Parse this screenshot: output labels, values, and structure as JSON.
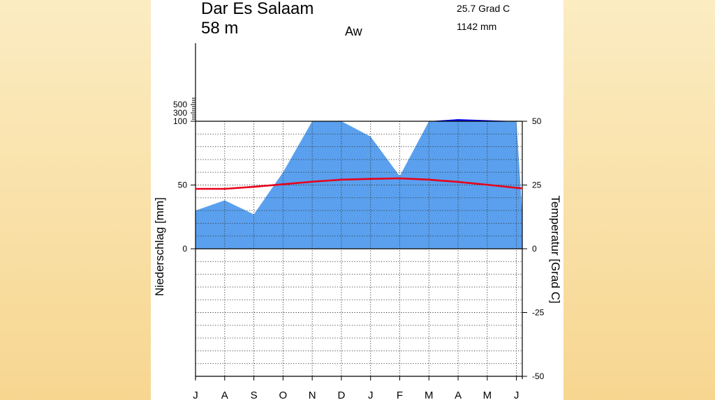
{
  "chart_data": {
    "type": "area",
    "title": "Dar Es Salaam",
    "elevation": "58 m",
    "climate_class": "Aw",
    "annual_temperature": "25.7 Grad C",
    "annual_precipitation": "1142 mm",
    "ylabel_left": "Niederschlag [mm]",
    "ylabel_right": "Temperatur [Grad C]",
    "months": [
      "J",
      "A",
      "S",
      "O",
      "N",
      "D",
      "J",
      "F",
      "M",
      "A",
      "M",
      "J"
    ],
    "precip_ticks": [
      "0",
      "50",
      "100",
      "300",
      "500"
    ],
    "precip_tick_values": [
      0,
      50,
      100,
      300,
      500
    ],
    "temp_ticks": [
      "50",
      "25",
      "0",
      "-25",
      "-50"
    ],
    "temp_tick_values": [
      50,
      25,
      0,
      -25,
      -50
    ],
    "temp_range": [
      -50,
      50
    ],
    "grid": true,
    "series": [
      {
        "name": "Niederschlag",
        "unit": "mm",
        "x": [
          0,
          1,
          2,
          3,
          4,
          5,
          6,
          7,
          8,
          9,
          10,
          11,
          11.2
        ],
        "values": [
          30,
          38,
          27,
          60,
          101,
          101,
          88,
          57,
          101,
          150,
          125,
          100,
          27
        ],
        "color_light": "#5aa0ee",
        "color_dark": "#0000ee"
      },
      {
        "name": "Temperatur",
        "unit": "Grad C",
        "x": [
          0,
          1,
          2,
          3,
          4,
          5,
          6,
          7,
          8,
          9,
          10,
          11,
          11.2
        ],
        "values": [
          23.5,
          23.5,
          24.3,
          25.3,
          26.3,
          27.1,
          27.4,
          27.6,
          27.1,
          26.2,
          25.1,
          23.9,
          23.7
        ],
        "color": "#e8001a"
      }
    ]
  }
}
